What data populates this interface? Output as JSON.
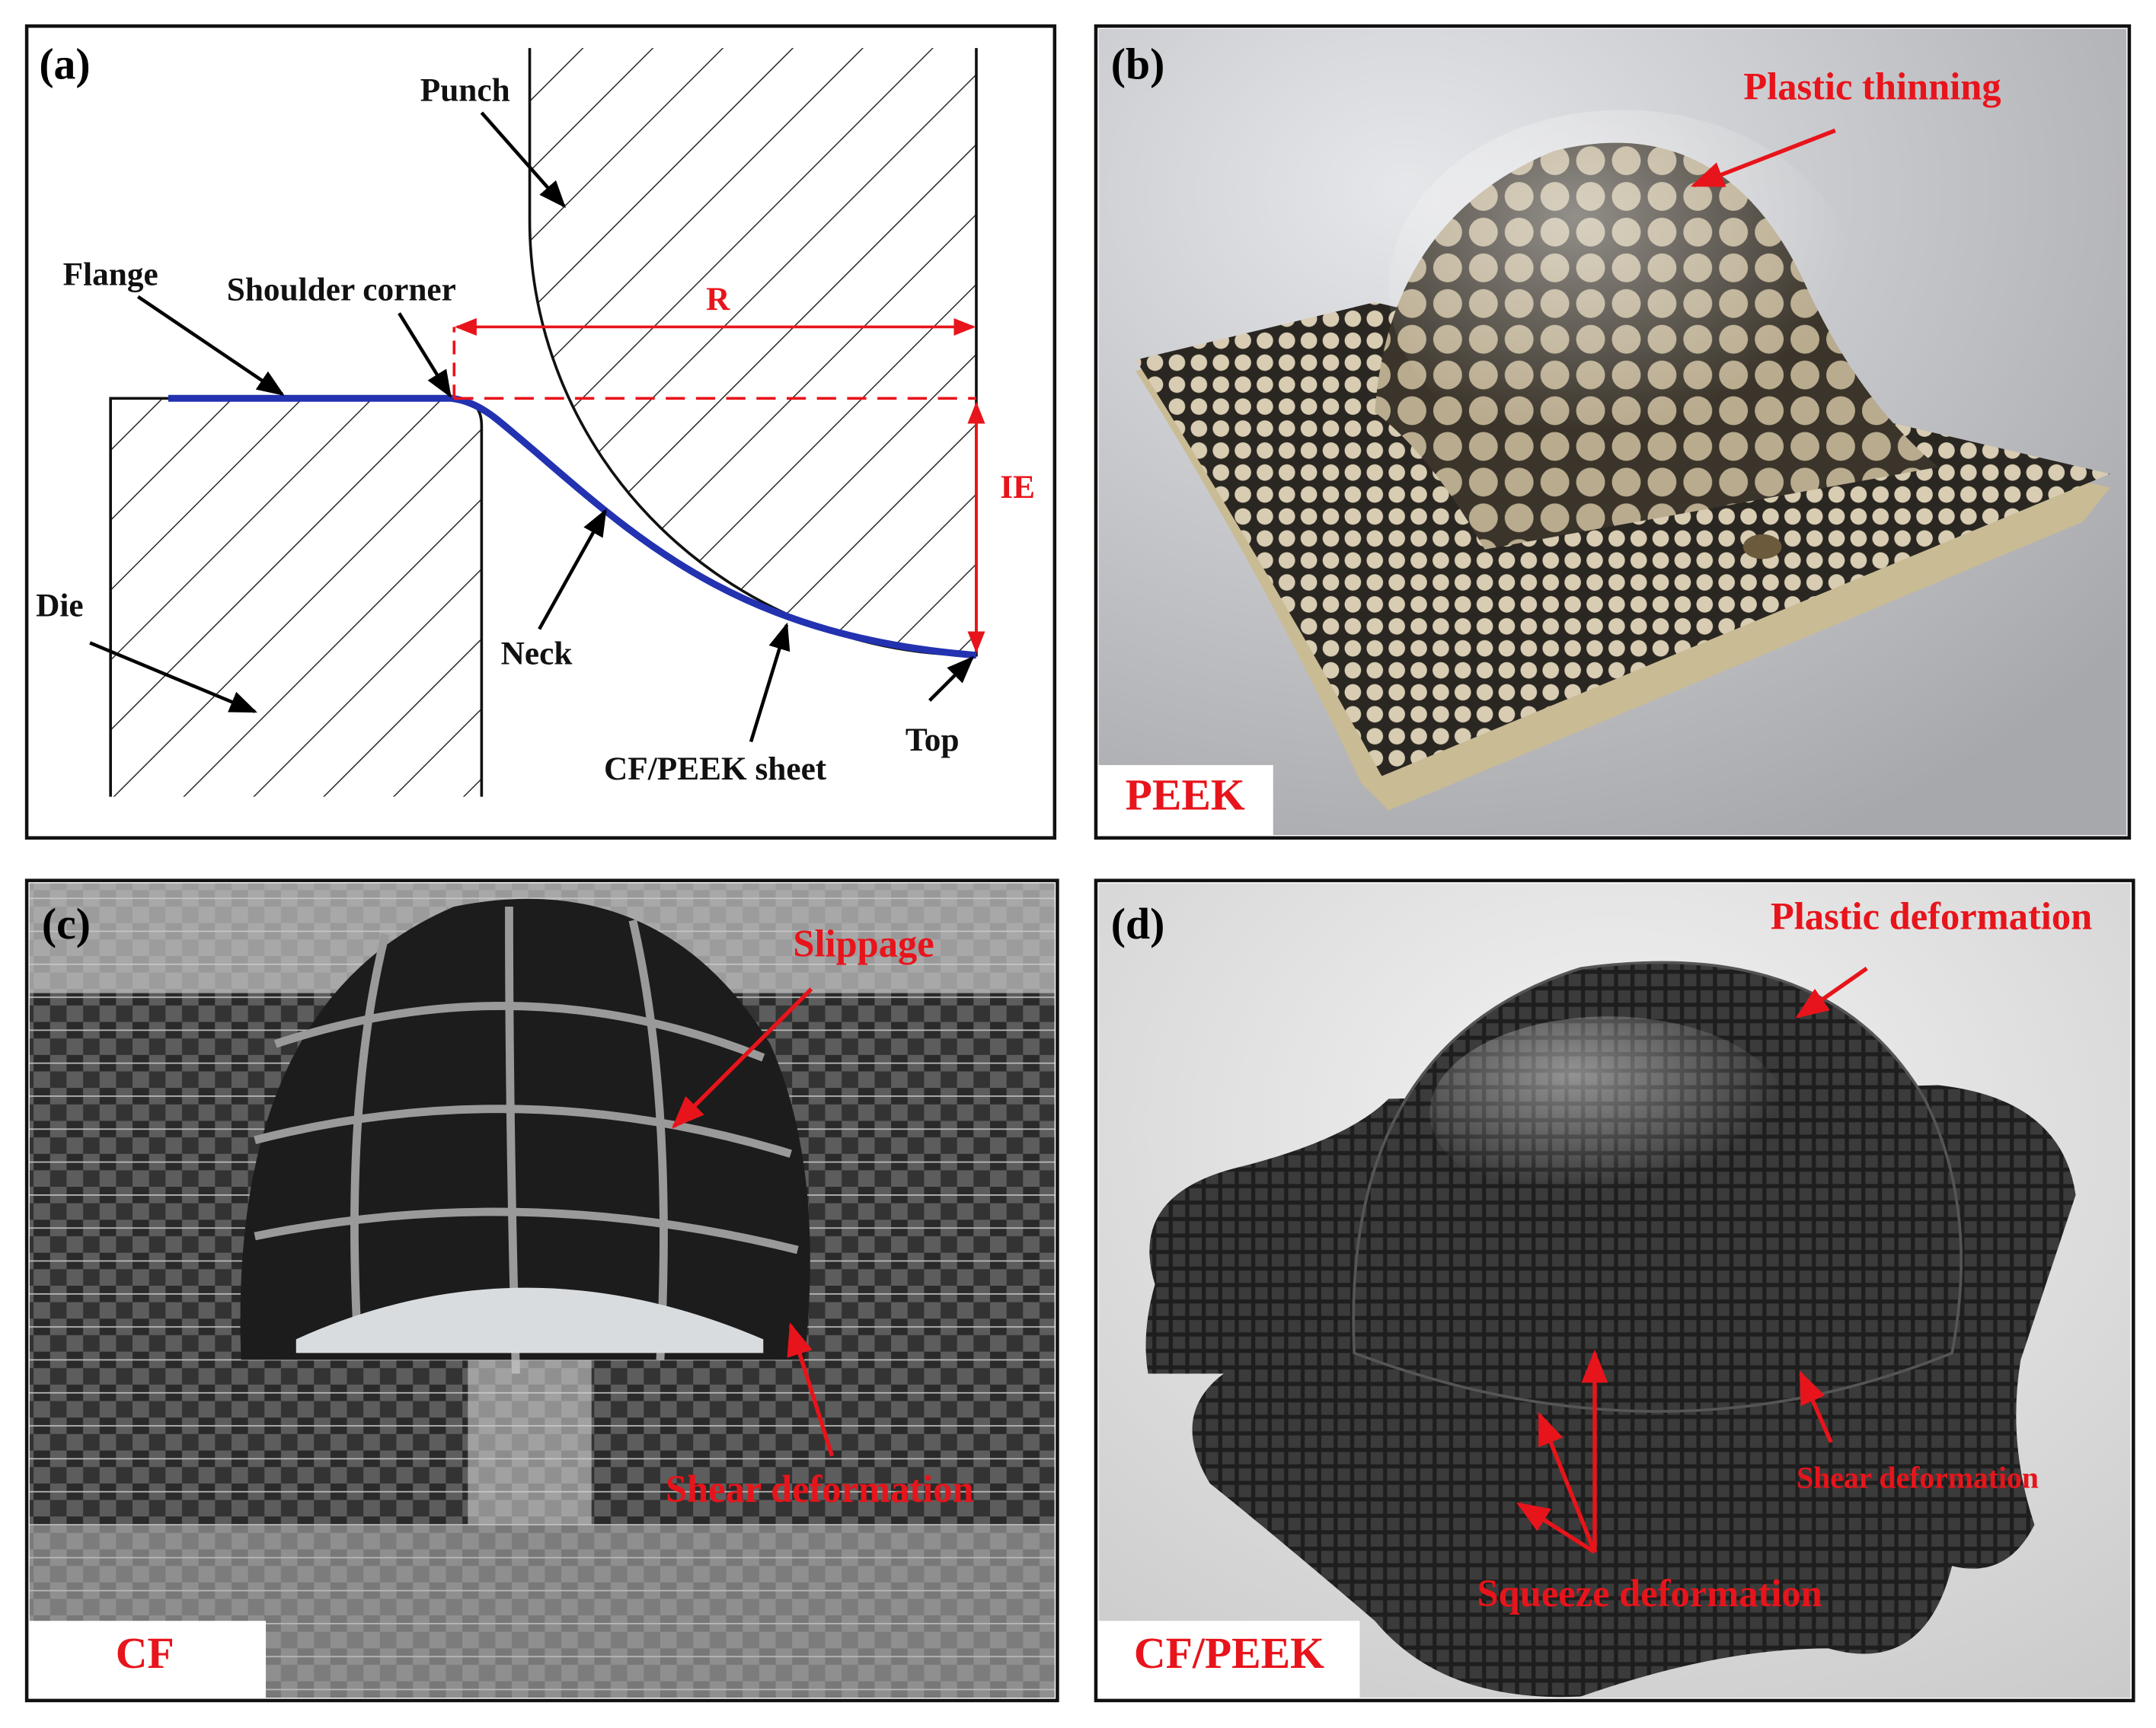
{
  "panels": [
    {
      "label": "(a)",
      "texts": [
        "Punch",
        "Flange",
        "Shoulder corner",
        "R",
        "IE",
        "Die",
        "Neck",
        "CF/PEEK sheet",
        "Top"
      ]
    },
    {
      "label": "(b)",
      "annotations": [
        "Plastic thinning"
      ],
      "material": "PEEK"
    },
    {
      "label": "(c)",
      "annotations": [
        "Slippage",
        "Shear deformation"
      ],
      "material": "CF"
    },
    {
      "label": "(d)",
      "annotations": [
        "Plastic deformation",
        "Shear deformation",
        "Squeeze deformation"
      ],
      "material": "CF/PEEK"
    }
  ]
}
